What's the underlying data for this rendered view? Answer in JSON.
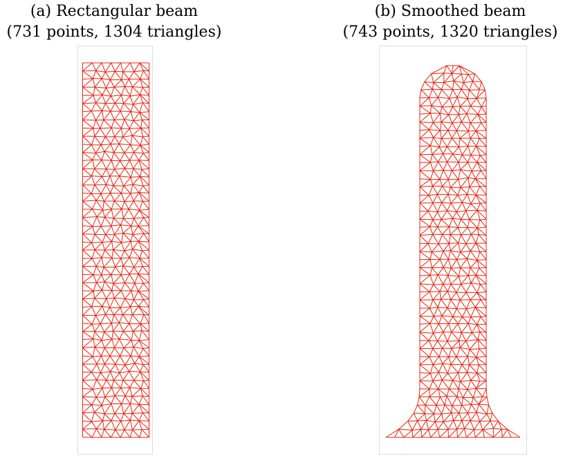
{
  "figure": {
    "panels": [
      {
        "id": "a",
        "title": "(a) Rectangular beam",
        "subtitle": "(731 points, 1304 triangles)",
        "shape": "rectangle"
      },
      {
        "id": "b",
        "title": "(b) Smoothed beam",
        "subtitle": "(743 points, 1320 triangles)",
        "shape": "rounded-top-flared-base"
      }
    ],
    "mesh_color": "#e8200c",
    "frame_color": "#dcdcdc"
  }
}
